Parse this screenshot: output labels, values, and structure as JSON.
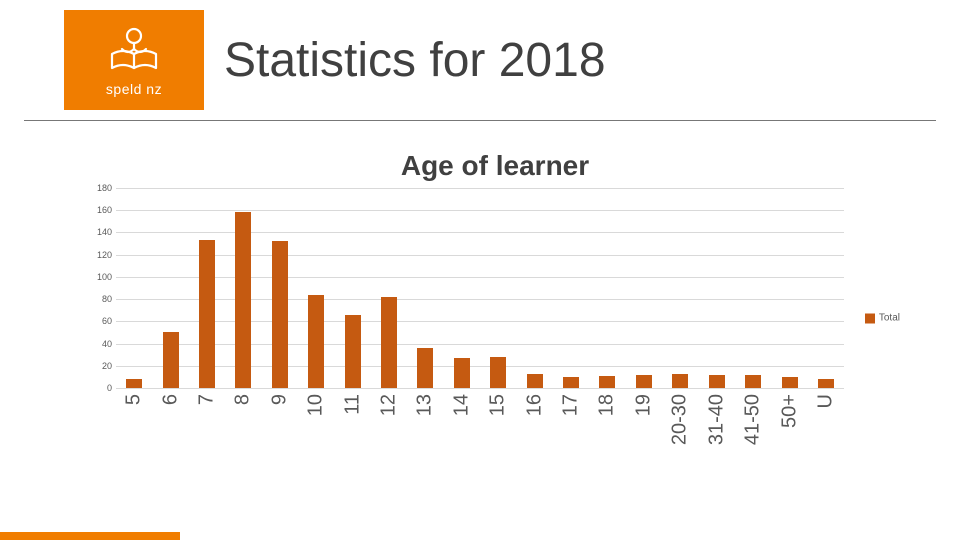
{
  "header": {
    "logo": {
      "brand_text": "speld nz",
      "background_color": "#f07d00",
      "stroke_color": "#ffffff"
    },
    "title": "Statistics for 2018",
    "title_color": "#404040",
    "title_fontsize": 48,
    "rule_color": "#777777"
  },
  "accent_bar_color": "#f07d00",
  "chart": {
    "type": "bar",
    "title": "Age of learner",
    "title_fontsize": 28,
    "title_weight": 700,
    "categories": [
      "5",
      "6",
      "7",
      "8",
      "9",
      "10",
      "11",
      "12",
      "13",
      "14",
      "15",
      "16",
      "17",
      "18",
      "19",
      "20-30",
      "31-40",
      "41-50",
      "50+",
      "U"
    ],
    "values": [
      8,
      50,
      133,
      158,
      132,
      84,
      66,
      82,
      36,
      27,
      28,
      13,
      10,
      11,
      12,
      13,
      12,
      12,
      10,
      8
    ],
    "series_label": "Total",
    "bar_color": "#c55a11",
    "ylim": [
      0,
      180
    ],
    "ytick_step": 20,
    "yticks": [
      0,
      20,
      40,
      60,
      80,
      100,
      120,
      140,
      160,
      180
    ],
    "grid_color": "#d9d9d9",
    "tick_fontsize": 9,
    "x_label_fontsize": 20,
    "axis_label_color": "#595959",
    "background_color": "#ffffff",
    "bar_width_ratio": 0.44
  }
}
